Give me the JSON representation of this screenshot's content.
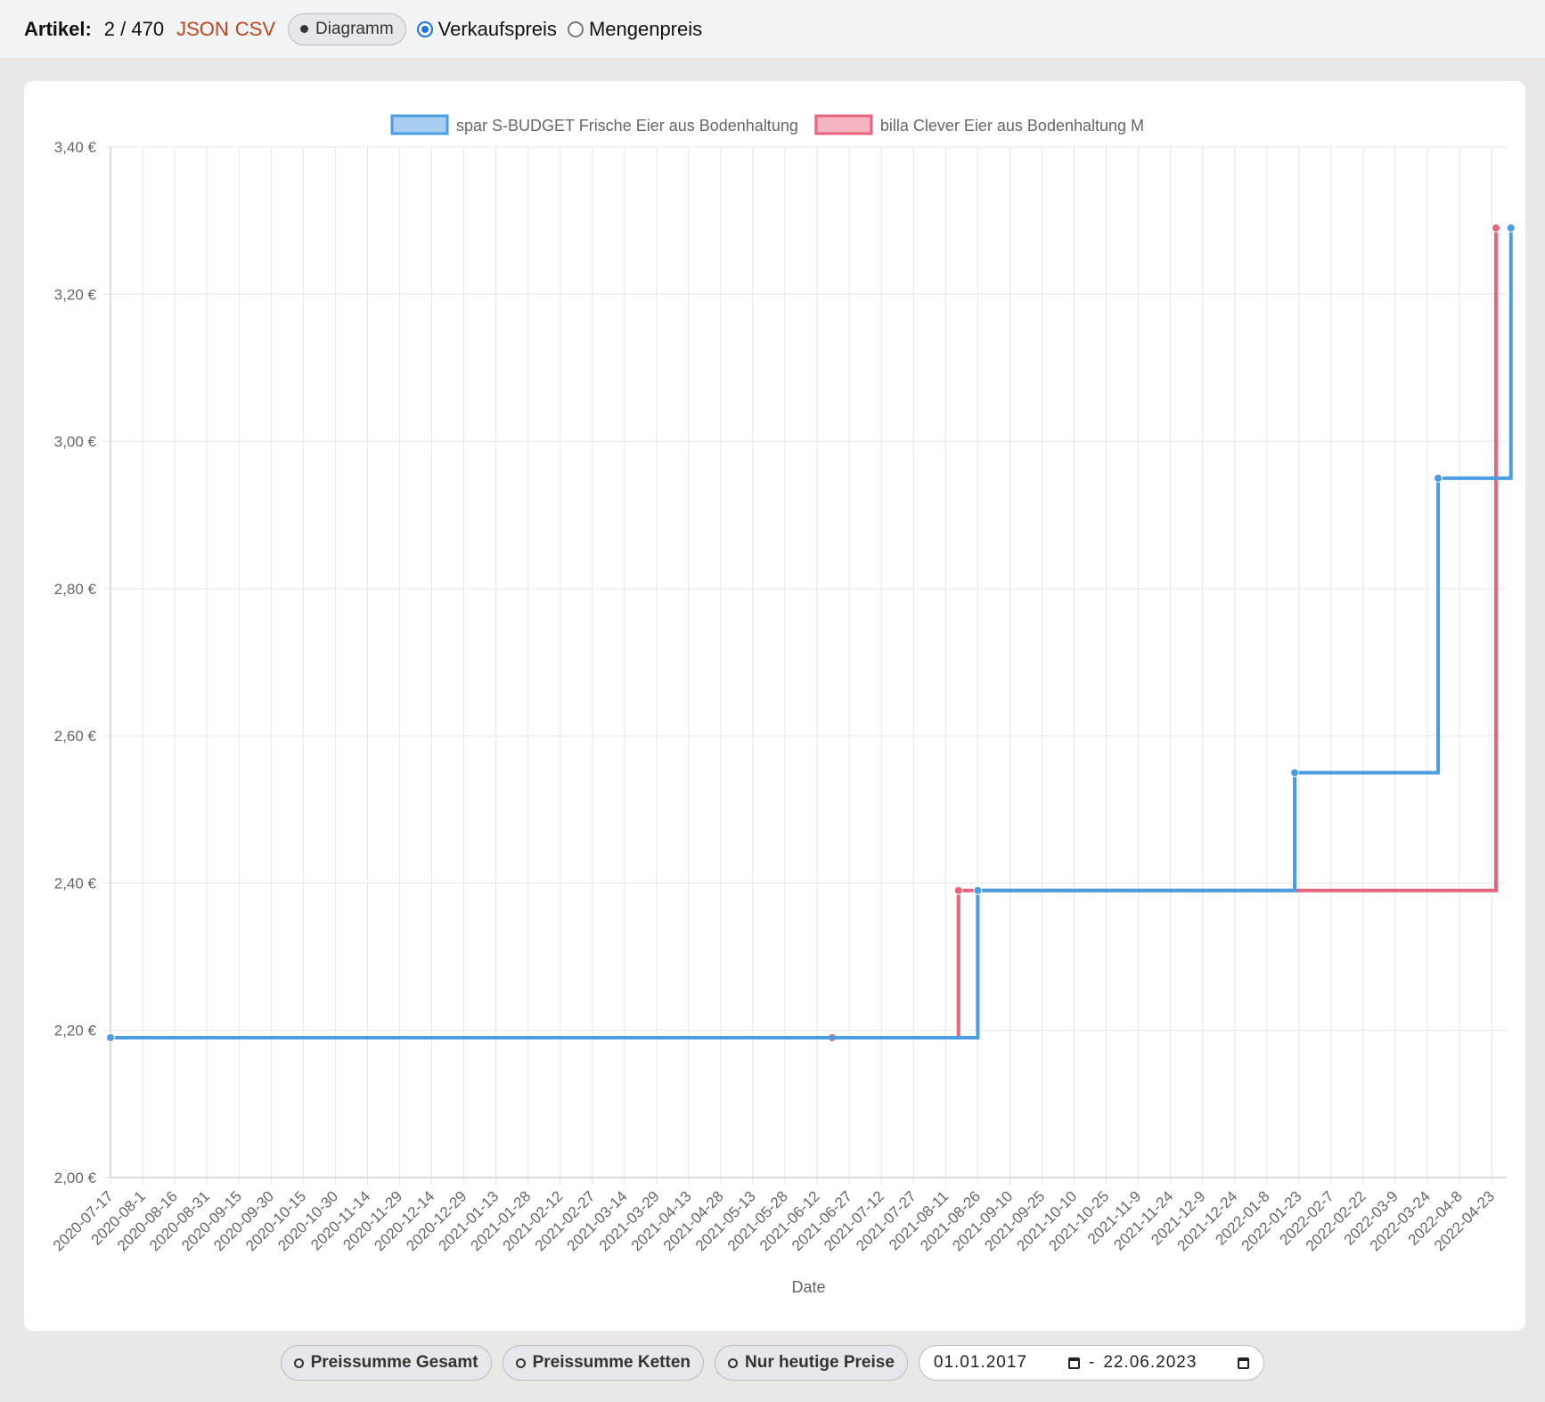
{
  "header": {
    "label": "Artikel:",
    "count": "2 / 470",
    "json_link": "JSON",
    "csv_link": "CSV",
    "diagram_toggle": "Diagramm",
    "radio_sale": "Verkaufspreis",
    "radio_unit": "Mengenpreis",
    "selected": "Verkaufspreis"
  },
  "footer": {
    "btn_total": "Preissumme Gesamt",
    "btn_chains": "Preissumme Ketten",
    "btn_today": "Nur heutige Preise",
    "date_from": "01.01.2017",
    "date_sep": "-",
    "date_to": "22.06.2023"
  },
  "chart_data": {
    "type": "line",
    "step": true,
    "xlabel": "Date",
    "ylabel": "",
    "ylim": [
      2.0,
      3.4
    ],
    "y_ticks": [
      "2,00 €",
      "2,20 €",
      "2,40 €",
      "2,60 €",
      "2,80 €",
      "3,00 €",
      "3,20 €",
      "3,40 €"
    ],
    "categories": [
      "2020-07-17",
      "2020-08-1",
      "2020-08-16",
      "2020-08-31",
      "2020-09-15",
      "2020-09-30",
      "2020-10-15",
      "2020-10-30",
      "2020-11-14",
      "2020-11-29",
      "2020-12-14",
      "2020-12-29",
      "2021-01-13",
      "2021-01-28",
      "2021-02-12",
      "2021-02-27",
      "2021-03-14",
      "2021-03-29",
      "2021-04-13",
      "2021-04-28",
      "2021-05-13",
      "2021-05-28",
      "2021-06-12",
      "2021-06-27",
      "2021-07-12",
      "2021-07-27",
      "2021-08-11",
      "2021-08-26",
      "2021-09-10",
      "2021-09-25",
      "2021-10-10",
      "2021-10-25",
      "2021-11-9",
      "2021-11-24",
      "2021-12-9",
      "2021-12-24",
      "2022-01-8",
      "2022-01-23",
      "2022-02-7",
      "2022-02-22",
      "2022-03-9",
      "2022-03-24",
      "2022-04-8",
      "2022-04-23"
    ],
    "legend_position": "top",
    "grid": true,
    "series": [
      {
        "name": "spar S-BUDGET Frische Eier aus Bodenhaltung",
        "color": "#4a9de0",
        "points": [
          {
            "x": "2020-07-17",
            "y": 2.19
          },
          {
            "x": "2021-08-26",
            "y": 2.39
          },
          {
            "x": "2022-01-21",
            "y": 2.55
          },
          {
            "x": "2022-03-29",
            "y": 2.95
          },
          {
            "x": "2022-05-02",
            "y": 3.29
          }
        ]
      },
      {
        "name": "billa Clever Eier aus Bodenhaltung M",
        "color": "#e8637c",
        "points": [
          {
            "x": "2021-06-19",
            "y": 2.19
          },
          {
            "x": "2021-08-17",
            "y": 2.39
          },
          {
            "x": "2022-04-25",
            "y": 3.29
          }
        ]
      }
    ]
  }
}
